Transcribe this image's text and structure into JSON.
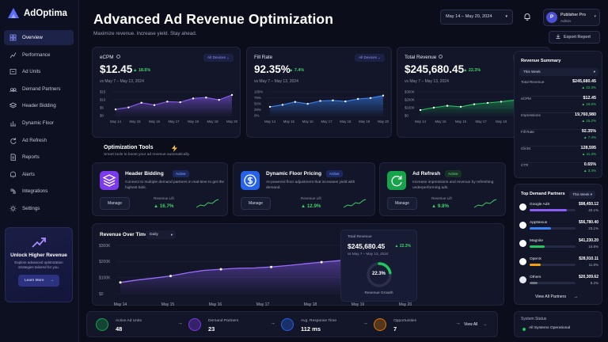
{
  "app": {
    "name": "AdOptima"
  },
  "sidebar": {
    "items": [
      {
        "label": "Overview",
        "icon": "grid-icon",
        "active": true
      },
      {
        "label": "Performance",
        "icon": "chart-icon"
      },
      {
        "label": "Ad Units",
        "icon": "ad-units-icon"
      },
      {
        "label": "Demand Partners",
        "icon": "partners-icon"
      },
      {
        "label": "Header Bidding",
        "icon": "layers-icon"
      },
      {
        "label": "Dynamic Floor",
        "icon": "floor-icon"
      },
      {
        "label": "Ad Refresh",
        "icon": "refresh-icon"
      },
      {
        "label": "Reports",
        "icon": "reports-icon"
      },
      {
        "label": "Alerts",
        "icon": "alert-icon"
      },
      {
        "label": "Integrations",
        "icon": "integrations-icon"
      },
      {
        "label": "Settings",
        "icon": "gear-icon"
      }
    ],
    "promo": {
      "title": "Unlock Higher Revenue",
      "desc": "Explore advanced optimization strategies tailored for you.",
      "button": "Learn More"
    }
  },
  "header": {
    "title": "Advanced Ad Revenue Optimization",
    "subtitle": "Maximize revenue. Increase yield. Stay ahead.",
    "date_range": "May 14 – May 20, 2024",
    "user_name": "Publisher Pro",
    "user_role": "Admin",
    "avatar_initial": "P",
    "export_label": "Export Report"
  },
  "kpis": [
    {
      "label": "eCPM",
      "value": "$12.45",
      "change": "▲ 18.6%",
      "compare": "vs May 7 – May 13, 2024",
      "filter": "All Devices ⌄",
      "y_ticks": [
        "$15",
        "$10",
        "$5",
        "$0"
      ],
      "series": [
        8.5,
        9.2,
        10.8,
        10.0,
        11.2,
        11.0,
        12.3,
        12.6,
        11.8,
        13.5
      ],
      "color": "#8b5cf6"
    },
    {
      "label": "Fill Rate",
      "value": "92.35%",
      "change": "▲ 7.4%",
      "compare": "vs May 7 – May 13, 2024",
      "filter": "All Devices ⌄",
      "y_ticks": [
        "100%",
        "75%",
        "50%",
        "25%",
        "0%"
      ],
      "series": [
        72,
        76,
        82,
        78,
        84,
        85,
        83,
        88,
        90,
        95
      ],
      "color": "#3b82f6"
    },
    {
      "label": "Total Revenue",
      "value": "$245,680.45",
      "change": "▲ 22.3%",
      "compare": "vs May 7 – May 13, 2024",
      "filter": "All Devices ⌄",
      "y_ticks": [
        "$300K",
        "$200K",
        "$100K",
        "$0"
      ],
      "series": [
        155,
        172,
        185,
        178,
        196,
        205,
        214,
        225,
        238,
        262
      ],
      "color": "#22c55e"
    }
  ],
  "x_dates": [
    "May 14",
    "May 15",
    "May 16",
    "May 17",
    "May 18",
    "May 19",
    "May 20"
  ],
  "tools": {
    "title": "Optimization Tools",
    "subtitle": "Smart tools to boost your ad revenue automatically.",
    "items": [
      {
        "title": "Header Bidding",
        "badge": "Active",
        "desc": "Connect to multiple demand partners in real-time to get the highest bids.",
        "manage": "Manage",
        "lift_label": "Revenue Lift",
        "lift": "▲ 16.7%",
        "color": "#7c3aed",
        "icon": "layers-icon"
      },
      {
        "title": "Dynamic Floor Pricing",
        "badge": "Active",
        "desc": "AI-powered floor adjustment that increases yield with demand.",
        "manage": "Manage",
        "lift_label": "Revenue Lift",
        "lift": "▲ 12.9%",
        "color": "#2563eb",
        "icon": "dollar-icon"
      },
      {
        "title": "Ad Refresh",
        "badge": "Active",
        "desc": "Increase impressions and revenue by refreshing underperforming ads.",
        "manage": "Manage",
        "lift_label": "Revenue Lift",
        "lift": "▲ 9.8%",
        "color": "#16a34a",
        "icon": "refresh-icon"
      }
    ]
  },
  "revenue_over_time": {
    "title": "Revenue Over Time",
    "period": "Daily",
    "y_ticks": [
      "$300K",
      "$200K",
      "$100K",
      "$0"
    ],
    "series": [
      70,
      85,
      97,
      110,
      130,
      145,
      152,
      158,
      160,
      166,
      175,
      186,
      196,
      205,
      216,
      232,
      248,
      262
    ],
    "total_label": "Total Revenue",
    "total_value": "$245,680.45",
    "total_change": "▲ 22.3%",
    "compare": "vs May 7 – May 13, 2024",
    "growth_pct": "22.3%",
    "growth_fraction": 0.223,
    "growth_label": "Revenue Growth"
  },
  "revenue_summary": {
    "title": "Revenue Summary",
    "period": "This Week",
    "rows": [
      {
        "name": "Total Revenue",
        "value": "$245,680.45",
        "change": "▲ 22.3%"
      },
      {
        "name": "eCPM",
        "value": "$12.45",
        "change": "▲ 18.6%"
      },
      {
        "name": "Impressions",
        "value": "19,760,980",
        "change": "▲ 15.2%"
      },
      {
        "name": "Fill Rate",
        "value": "92.35%",
        "change": "▲ 7.4%"
      },
      {
        "name": "Clicks",
        "value": "128,595",
        "change": "▲ 11.3%"
      },
      {
        "name": "CTR",
        "value": "0.65%",
        "change": "▲ 3.4%"
      }
    ]
  },
  "top_demand_partners": {
    "title": "Top Demand Partners",
    "period": "This Week",
    "rows": [
      {
        "name": "Google AdX",
        "value": "$98,450.12",
        "pct": "40.1%",
        "share": 0.401,
        "color": "#8b5cf6"
      },
      {
        "name": "AppNexus",
        "value": "$56,780.40",
        "pct": "23.1%",
        "share": 0.231,
        "color": "#3b82f6"
      },
      {
        "name": "Magnite",
        "value": "$41,230.20",
        "pct": "16.8%",
        "share": 0.168,
        "color": "#22c55e"
      },
      {
        "name": "OpenX",
        "value": "$28,910.11",
        "pct": "11.8%",
        "share": 0.118,
        "color": "#f59e0b"
      },
      {
        "name": "Others",
        "value": "$20,309.62",
        "pct": "8.2%",
        "share": 0.082,
        "color": "#6b7280"
      }
    ],
    "view_all": "View All Partners"
  },
  "bottom": {
    "items": [
      {
        "label": "Active Ad Units",
        "value": "48",
        "color": "#16a34a"
      },
      {
        "label": "Demand Partners",
        "value": "23",
        "color": "#7c3aed"
      },
      {
        "label": "Avg. Response Time",
        "value": "112 ms",
        "color": "#2563eb"
      },
      {
        "label": "Opportunities",
        "value": "7",
        "color": "#d97706"
      }
    ],
    "view_all": "View All"
  },
  "system_status": {
    "title": "System Status",
    "value": "All Systems Operational"
  }
}
